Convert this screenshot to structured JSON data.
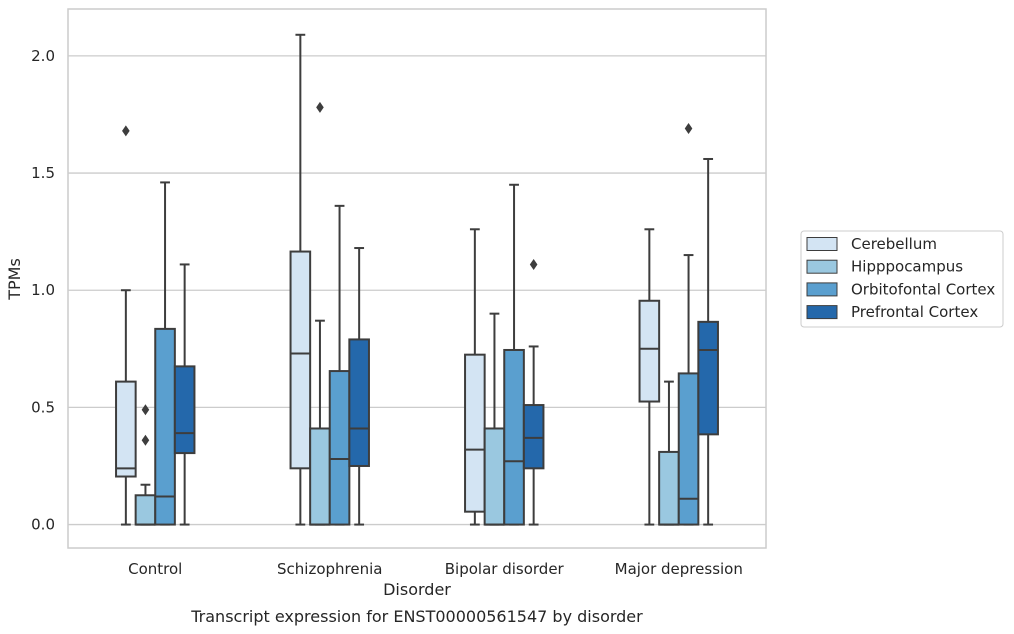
{
  "caption": "Transcript expression for ENST00000561547 by disorder",
  "chart_data": {
    "type": "box",
    "xlabel": "Disorder",
    "ylabel": "TPMs",
    "ylim": [
      -0.1,
      2.2
    ],
    "yticks": [
      0.0,
      0.5,
      1.0,
      1.5,
      2.0
    ],
    "ytick_labels": [
      "0.0",
      "0.5",
      "1.0",
      "1.5",
      "2.0"
    ],
    "grid": "horizontal",
    "legend_position": "right",
    "categories": [
      "Control",
      "Schizophrenia",
      "Bipolar disorder",
      "Major depression"
    ],
    "series": [
      {
        "name": "Cerebellum",
        "color": "#d3e4f3",
        "boxes": [
          {
            "whislo": 0.0,
            "q1": 0.205,
            "med": 0.24,
            "q3": 0.61,
            "whishi": 1.0,
            "fliers": [
              1.68
            ]
          },
          {
            "whislo": 0.0,
            "q1": 0.24,
            "med": 0.73,
            "q3": 1.165,
            "whishi": 2.09,
            "fliers": []
          },
          {
            "whislo": 0.0,
            "q1": 0.055,
            "med": 0.32,
            "q3": 0.725,
            "whishi": 1.26,
            "fliers": []
          },
          {
            "whislo": 0.0,
            "q1": 0.525,
            "med": 0.75,
            "q3": 0.955,
            "whishi": 1.26,
            "fliers": []
          }
        ]
      },
      {
        "name": "Hipppocampus",
        "color": "#9ac8e0",
        "boxes": [
          {
            "whislo": 0.0,
            "q1": 0.0,
            "med": 0.0,
            "q3": 0.125,
            "whishi": 0.17,
            "fliers": [
              0.36,
              0.49
            ]
          },
          {
            "whislo": 0.0,
            "q1": 0.0,
            "med": 0.0,
            "q3": 0.41,
            "whishi": 0.87,
            "fliers": [
              1.78
            ]
          },
          {
            "whislo": 0.0,
            "q1": 0.0,
            "med": 0.0,
            "q3": 0.41,
            "whishi": 0.9,
            "fliers": []
          },
          {
            "whislo": 0.0,
            "q1": 0.0,
            "med": 0.0,
            "q3": 0.31,
            "whishi": 0.61,
            "fliers": []
          }
        ]
      },
      {
        "name": "Orbitofontal Cortex",
        "color": "#5a9fcf",
        "boxes": [
          {
            "whislo": 0.0,
            "q1": 0.0,
            "med": 0.12,
            "q3": 0.835,
            "whishi": 1.46,
            "fliers": []
          },
          {
            "whislo": 0.0,
            "q1": 0.0,
            "med": 0.28,
            "q3": 0.655,
            "whishi": 1.36,
            "fliers": []
          },
          {
            "whislo": 0.0,
            "q1": 0.0,
            "med": 0.27,
            "q3": 0.745,
            "whishi": 1.45,
            "fliers": []
          },
          {
            "whislo": 0.0,
            "q1": 0.0,
            "med": 0.11,
            "q3": 0.645,
            "whishi": 1.15,
            "fliers": [
              1.69
            ]
          }
        ]
      },
      {
        "name": "Prefrontal Cortex",
        "color": "#2468ab",
        "boxes": [
          {
            "whislo": 0.0,
            "q1": 0.305,
            "med": 0.39,
            "q3": 0.675,
            "whishi": 1.11,
            "fliers": []
          },
          {
            "whislo": 0.0,
            "q1": 0.25,
            "med": 0.41,
            "q3": 0.79,
            "whishi": 1.18,
            "fliers": []
          },
          {
            "whislo": 0.0,
            "q1": 0.24,
            "med": 0.37,
            "q3": 0.51,
            "whishi": 0.76,
            "fliers": [
              1.11
            ]
          },
          {
            "whislo": 0.0,
            "q1": 0.385,
            "med": 0.745,
            "q3": 0.865,
            "whishi": 1.56,
            "fliers": []
          }
        ]
      }
    ]
  }
}
